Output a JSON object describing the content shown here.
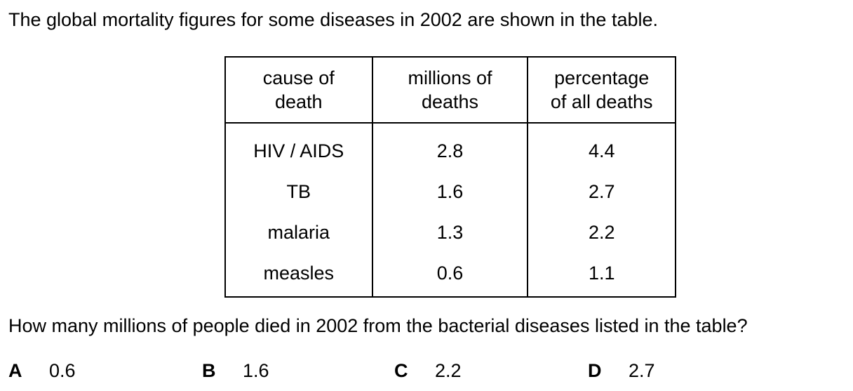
{
  "intro": "The global mortality figures for some diseases in 2002 are shown in the table.",
  "table": {
    "headers": [
      [
        "cause of",
        "death"
      ],
      [
        "millions of",
        "deaths"
      ],
      [
        "percentage",
        "of all deaths"
      ]
    ],
    "rows": [
      [
        "HIV / AIDS",
        "2.8",
        "4.4"
      ],
      [
        "TB",
        "1.6",
        "2.7"
      ],
      [
        "malaria",
        "1.3",
        "2.2"
      ],
      [
        "measles",
        "0.6",
        "1.1"
      ]
    ]
  },
  "question": "How many millions of people died in 2002 from the bacterial diseases listed in the table?",
  "options": [
    {
      "letter": "A",
      "value": "0.6"
    },
    {
      "letter": "B",
      "value": "1.6"
    },
    {
      "letter": "C",
      "value": "2.2"
    },
    {
      "letter": "D",
      "value": "2.7"
    }
  ]
}
